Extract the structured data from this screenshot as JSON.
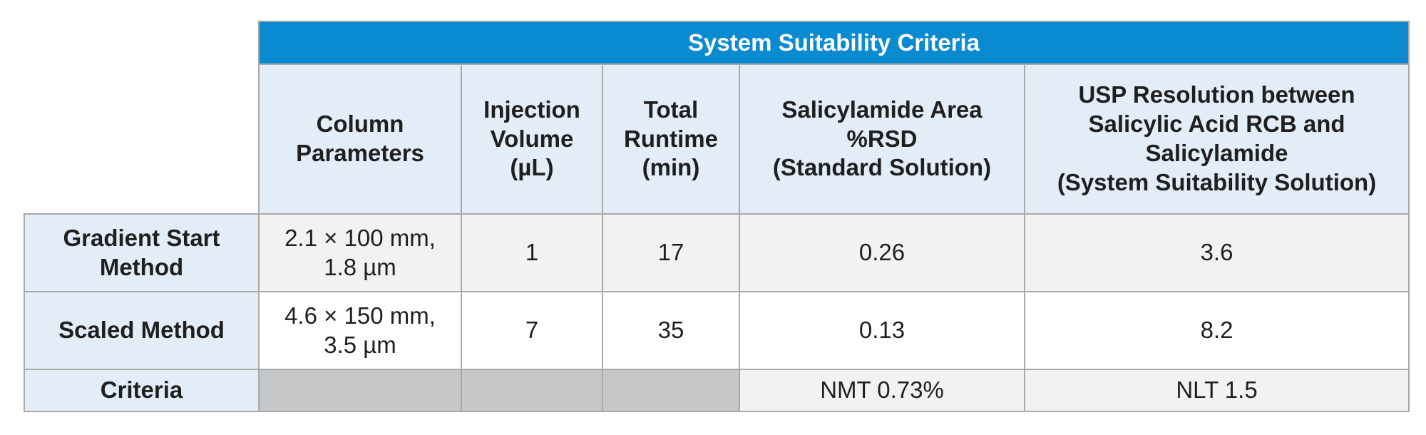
{
  "table": {
    "banner": "System Suitability Criteria",
    "headers": {
      "col1": [
        "Column",
        "Parameters"
      ],
      "col2": [
        "Injection",
        "Volume",
        "(µL)"
      ],
      "col3": [
        "Total",
        "Runtime",
        "(min)"
      ],
      "col4": [
        "Salicylamide Area",
        "%RSD",
        "(Standard Solution)"
      ],
      "col5": [
        "USP Resolution between",
        "Salicylic Acid RCB and",
        "Salicylamide",
        "(System Suitability Solution)"
      ]
    },
    "rows": [
      {
        "label": [
          "Gradient Start",
          "Method"
        ],
        "column": [
          "2.1 × 100 mm,",
          "1.8 µm"
        ],
        "injection": "1",
        "runtime": "17",
        "rsd": "0.26",
        "resolution": "3.6"
      },
      {
        "label": [
          "Scaled Method"
        ],
        "column": [
          "4.6 × 150 mm,",
          "3.5 µm"
        ],
        "injection": "7",
        "runtime": "35",
        "rsd": "0.13",
        "resolution": "8.2"
      },
      {
        "label": [
          "Criteria"
        ],
        "column": [
          ""
        ],
        "injection": "",
        "runtime": "",
        "rsd": "NMT 0.73%",
        "resolution": "NLT 1.5"
      }
    ]
  },
  "colors": {
    "banner": "#0a8ad0",
    "header_bg": "#e3edf8",
    "row_alt_bg": "#f2f2f2",
    "na_bg": "#c5c6c8",
    "border": "#a9a9a9"
  }
}
